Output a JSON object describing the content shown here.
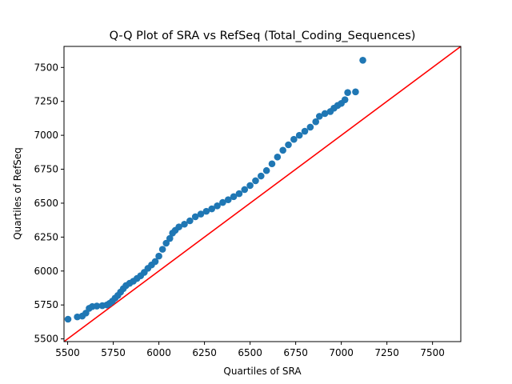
{
  "chart_data": {
    "type": "scatter",
    "title": "Q-Q Plot of SRA vs RefSeq (Total_Coding_Sequences)",
    "xlabel": "Quartiles of SRA",
    "ylabel": "Quartiles of RefSeq",
    "xlim": [
      5480,
      7655
    ],
    "ylim": [
      5480,
      7655
    ],
    "xticks": [
      5500,
      5750,
      6000,
      6250,
      6500,
      6750,
      7000,
      7250,
      7500
    ],
    "yticks": [
      5500,
      5750,
      6000,
      6250,
      6500,
      6750,
      7000,
      7250,
      7500
    ],
    "grid": false,
    "legend": "none",
    "colors": {
      "points": "#1f77b4",
      "reference_line": "#ff0000"
    },
    "reference_line": {
      "from": [
        5480,
        5480
      ],
      "to": [
        7655,
        7655
      ]
    },
    "series": [
      {
        "points": [
          [
            5502,
            5645
          ],
          [
            5553,
            5662
          ],
          [
            5580,
            5668
          ],
          [
            5600,
            5690
          ],
          [
            5618,
            5725
          ],
          [
            5635,
            5738
          ],
          [
            5660,
            5742
          ],
          [
            5690,
            5745
          ],
          [
            5715,
            5750
          ],
          [
            5730,
            5762
          ],
          [
            5745,
            5778
          ],
          [
            5760,
            5800
          ],
          [
            5775,
            5820
          ],
          [
            5790,
            5845
          ],
          [
            5805,
            5870
          ],
          [
            5820,
            5893
          ],
          [
            5840,
            5910
          ],
          [
            5860,
            5925
          ],
          [
            5880,
            5945
          ],
          [
            5900,
            5965
          ],
          [
            5920,
            5990
          ],
          [
            5940,
            6020
          ],
          [
            5960,
            6045
          ],
          [
            5980,
            6070
          ],
          [
            6000,
            6110
          ],
          [
            6020,
            6160
          ],
          [
            6040,
            6205
          ],
          [
            6060,
            6240
          ],
          [
            6075,
            6280
          ],
          [
            6090,
            6300
          ],
          [
            6110,
            6325
          ],
          [
            6140,
            6345
          ],
          [
            6170,
            6370
          ],
          [
            6200,
            6400
          ],
          [
            6230,
            6420
          ],
          [
            6260,
            6440
          ],
          [
            6290,
            6458
          ],
          [
            6320,
            6480
          ],
          [
            6350,
            6505
          ],
          [
            6380,
            6525
          ],
          [
            6410,
            6548
          ],
          [
            6440,
            6570
          ],
          [
            6470,
            6600
          ],
          [
            6500,
            6630
          ],
          [
            6530,
            6665
          ],
          [
            6560,
            6700
          ],
          [
            6590,
            6740
          ],
          [
            6620,
            6790
          ],
          [
            6650,
            6840
          ],
          [
            6680,
            6890
          ],
          [
            6710,
            6930
          ],
          [
            6740,
            6970
          ],
          [
            6770,
            7000
          ],
          [
            6800,
            7030
          ],
          [
            6830,
            7060
          ],
          [
            6860,
            7100
          ],
          [
            6880,
            7140
          ],
          [
            6910,
            7160
          ],
          [
            6940,
            7175
          ],
          [
            6960,
            7200
          ],
          [
            6980,
            7220
          ],
          [
            7000,
            7235
          ],
          [
            7020,
            7262
          ],
          [
            7035,
            7315
          ],
          [
            7078,
            7320
          ],
          [
            7118,
            7553
          ]
        ]
      }
    ]
  }
}
